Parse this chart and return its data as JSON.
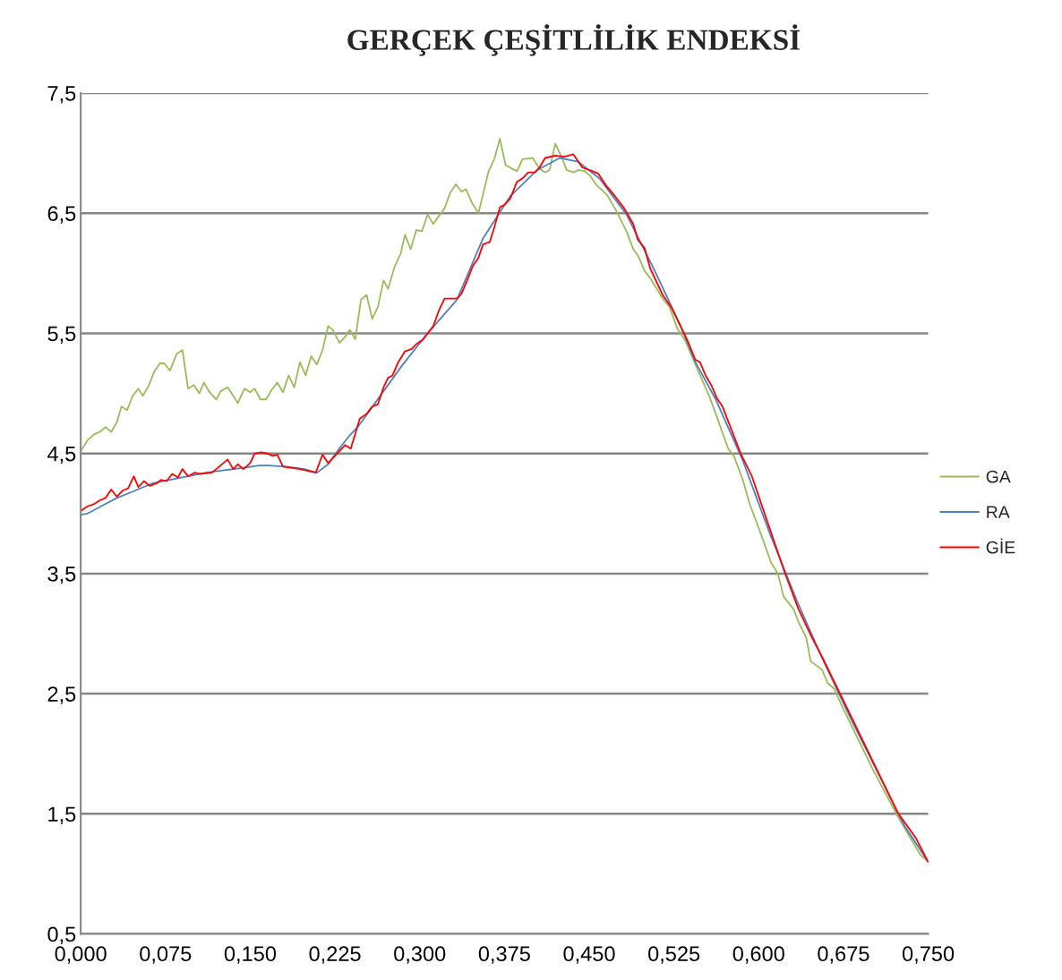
{
  "chart_data": {
    "type": "line",
    "title": "GERÇEK ÇEŞİTLİLİK ENDEKSİ",
    "xlim": [
      0,
      0.75
    ],
    "ylim": [
      0.5,
      7.5
    ],
    "xticks": [
      {
        "value": 0,
        "label": "0,000"
      },
      {
        "value": 0.075,
        "label": "0,075"
      },
      {
        "value": 0.15,
        "label": "0,150"
      },
      {
        "value": 0.225,
        "label": "0,225"
      },
      {
        "value": 0.3,
        "label": "0,300"
      },
      {
        "value": 0.375,
        "label": "0,375"
      },
      {
        "value": 0.45,
        "label": "0,450"
      },
      {
        "value": 0.525,
        "label": "0,525"
      },
      {
        "value": 0.6,
        "label": "0,600"
      },
      {
        "value": 0.675,
        "label": "0,675"
      },
      {
        "value": 0.75,
        "label": "0,750"
      }
    ],
    "yticks": [
      {
        "value": 0.5,
        "label": "0,5"
      },
      {
        "value": 1.5,
        "label": "1,5"
      },
      {
        "value": 2.5,
        "label": "2,5"
      },
      {
        "value": 3.5,
        "label": "3,5"
      },
      {
        "value": 4.5,
        "label": "4,5"
      },
      {
        "value": 5.5,
        "label": "5,5"
      },
      {
        "value": 6.5,
        "label": "6,5"
      },
      {
        "value": 7.5,
        "label": "7,5"
      }
    ],
    "grid": "y",
    "legend": "right",
    "marker": "none",
    "line_style": "solid",
    "series": [
      {
        "name": "GA",
        "color": "#9bbb59",
        "x": [
          0,
          0.006,
          0.012,
          0.017,
          0.022,
          0.027,
          0.032,
          0.036,
          0.041,
          0.046,
          0.051,
          0.055,
          0.06,
          0.065,
          0.07,
          0.074,
          0.079,
          0.085,
          0.09,
          0.095,
          0.1,
          0.105,
          0.109,
          0.114,
          0.12,
          0.124,
          0.13,
          0.135,
          0.139,
          0.145,
          0.15,
          0.154,
          0.159,
          0.164,
          0.169,
          0.174,
          0.179,
          0.184,
          0.189,
          0.194,
          0.199,
          0.204,
          0.209,
          0.214,
          0.219,
          0.223,
          0.229,
          0.234,
          0.238,
          0.243,
          0.248,
          0.253,
          0.258,
          0.263,
          0.268,
          0.272,
          0.278,
          0.283,
          0.287,
          0.292,
          0.297,
          0.302,
          0.307,
          0.312,
          0.318,
          0.322,
          0.327,
          0.332,
          0.337,
          0.341,
          0.346,
          0.352,
          0.361,
          0.366,
          0.371,
          0.376,
          0.382,
          0.386,
          0.391,
          0.4,
          0.406,
          0.411,
          0.415,
          0.42,
          0.426,
          0.43,
          0.436,
          0.441,
          0.446,
          0.451,
          0.456,
          0.466,
          0.474,
          0.483,
          0.489,
          0.493,
          0.499,
          0.504,
          0.515,
          0.521,
          0.528,
          0.535,
          0.544,
          0.557,
          0.562,
          0.573,
          0.578,
          0.586,
          0.592,
          0.6,
          0.611,
          0.617,
          0.622,
          0.631,
          0.636,
          0.642,
          0.646,
          0.656,
          0.661,
          0.667,
          0.673,
          0.701,
          0.723,
          0.743,
          0.75
        ],
        "values": [
          4.52,
          4.61,
          4.66,
          4.68,
          4.72,
          4.68,
          4.76,
          4.89,
          4.86,
          4.98,
          5.04,
          4.98,
          5.06,
          5.18,
          5.25,
          5.25,
          5.19,
          5.33,
          5.36,
          5.04,
          5.07,
          5.0,
          5.09,
          5.01,
          4.95,
          5.02,
          5.05,
          4.98,
          4.92,
          5.04,
          5.01,
          5.04,
          4.95,
          4.95,
          5.03,
          5.09,
          5.01,
          5.15,
          5.05,
          5.26,
          5.15,
          5.31,
          5.24,
          5.36,
          5.56,
          5.53,
          5.42,
          5.47,
          5.53,
          5.45,
          5.78,
          5.82,
          5.62,
          5.72,
          5.94,
          5.87,
          6.06,
          6.16,
          6.32,
          6.2,
          6.36,
          6.35,
          6.49,
          6.41,
          6.49,
          6.54,
          6.67,
          6.74,
          6.68,
          6.7,
          6.59,
          6.5,
          6.85,
          6.95,
          7.12,
          6.9,
          6.87,
          6.85,
          6.95,
          6.96,
          6.87,
          6.84,
          6.86,
          7.08,
          6.96,
          6.86,
          6.84,
          6.86,
          6.85,
          6.81,
          6.74,
          6.65,
          6.52,
          6.35,
          6.2,
          6.15,
          6.02,
          5.96,
          5.79,
          5.72,
          5.54,
          5.44,
          5.24,
          4.96,
          4.83,
          4.54,
          4.48,
          4.28,
          4.08,
          3.88,
          3.59,
          3.5,
          3.31,
          3.2,
          3.08,
          2.97,
          2.77,
          2.7,
          2.59,
          2.54,
          2.41,
          1.87,
          1.48,
          1.16,
          1.1
        ]
      },
      {
        "name": "RA",
        "color": "#4f81bd",
        "x": [
          0,
          0.006,
          0.012,
          0.022,
          0.032,
          0.048,
          0.063,
          0.079,
          0.095,
          0.111,
          0.127,
          0.143,
          0.158,
          0.166,
          0.182,
          0.198,
          0.209,
          0.219,
          0.228,
          0.238,
          0.246,
          0.285,
          0.307,
          0.333,
          0.356,
          0.38,
          0.404,
          0.424,
          0.44,
          0.459,
          0.483,
          0.507,
          0.531,
          0.544,
          0.562,
          0.586,
          0.61,
          0.634,
          0.657,
          0.681,
          0.705,
          0.729,
          0.75
        ],
        "values": [
          3.99,
          4.0,
          4.03,
          4.08,
          4.13,
          4.19,
          4.25,
          4.28,
          4.31,
          4.34,
          4.36,
          4.38,
          4.4,
          4.4,
          4.39,
          4.37,
          4.34,
          4.41,
          4.53,
          4.65,
          4.73,
          5.24,
          5.5,
          5.78,
          6.29,
          6.64,
          6.86,
          6.96,
          6.93,
          6.79,
          6.49,
          6.04,
          5.56,
          5.26,
          4.95,
          4.44,
          3.83,
          3.27,
          2.78,
          2.3,
          1.85,
          1.4,
          1.1
        ]
      },
      {
        "name": "GİE",
        "color": "#ff0000",
        "x": [
          0,
          0.006,
          0.012,
          0.017,
          0.022,
          0.027,
          0.032,
          0.037,
          0.042,
          0.047,
          0.051,
          0.056,
          0.061,
          0.067,
          0.071,
          0.076,
          0.081,
          0.086,
          0.09,
          0.095,
          0.101,
          0.105,
          0.116,
          0.12,
          0.13,
          0.135,
          0.139,
          0.144,
          0.15,
          0.154,
          0.16,
          0.165,
          0.17,
          0.174,
          0.179,
          0.194,
          0.208,
          0.214,
          0.219,
          0.234,
          0.239,
          0.247,
          0.253,
          0.258,
          0.263,
          0.268,
          0.272,
          0.276,
          0.281,
          0.287,
          0.293,
          0.297,
          0.303,
          0.307,
          0.312,
          0.317,
          0.322,
          0.327,
          0.333,
          0.337,
          0.342,
          0.347,
          0.352,
          0.356,
          0.362,
          0.366,
          0.371,
          0.375,
          0.38,
          0.386,
          0.391,
          0.396,
          0.402,
          0.406,
          0.411,
          0.42,
          0.428,
          0.436,
          0.444,
          0.45,
          0.458,
          0.465,
          0.473,
          0.481,
          0.489,
          0.493,
          0.499,
          0.504,
          0.515,
          0.523,
          0.537,
          0.544,
          0.548,
          0.553,
          0.558,
          0.563,
          0.568,
          0.584,
          0.594,
          0.623,
          0.635,
          0.647,
          0.657,
          0.671,
          0.723,
          0.739,
          0.75
        ],
        "values": [
          4.02,
          4.06,
          4.08,
          4.11,
          4.13,
          4.2,
          4.14,
          4.19,
          4.21,
          4.31,
          4.22,
          4.27,
          4.23,
          4.25,
          4.28,
          4.27,
          4.33,
          4.3,
          4.37,
          4.31,
          4.34,
          4.33,
          4.34,
          4.37,
          4.45,
          4.37,
          4.41,
          4.37,
          4.42,
          4.5,
          4.51,
          4.5,
          4.48,
          4.49,
          4.39,
          4.37,
          4.34,
          4.49,
          4.42,
          4.57,
          4.54,
          4.79,
          4.83,
          4.89,
          4.91,
          5.05,
          5.13,
          5.15,
          5.26,
          5.35,
          5.37,
          5.41,
          5.45,
          5.5,
          5.56,
          5.69,
          5.79,
          5.79,
          5.79,
          5.83,
          5.94,
          6.06,
          6.13,
          6.24,
          6.26,
          6.38,
          6.55,
          6.57,
          6.62,
          6.76,
          6.79,
          6.84,
          6.84,
          6.88,
          6.96,
          6.98,
          6.97,
          6.99,
          6.88,
          6.86,
          6.83,
          6.73,
          6.64,
          6.54,
          6.41,
          6.28,
          6.21,
          6.04,
          5.82,
          5.71,
          5.44,
          5.28,
          5.26,
          5.15,
          5.07,
          4.96,
          4.89,
          4.5,
          4.31,
          3.51,
          3.21,
          2.97,
          2.79,
          2.52,
          1.51,
          1.3,
          1.1
        ]
      }
    ]
  }
}
